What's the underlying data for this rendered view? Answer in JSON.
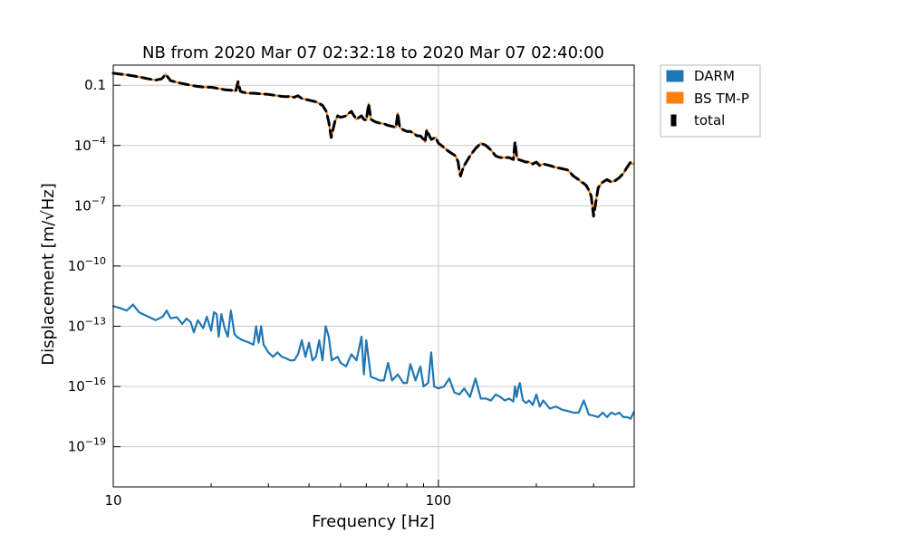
{
  "chart_data": {
    "type": "line",
    "title": "NB from 2020 Mar 07 02:32:18 to 2020 Mar 07 02:40:00",
    "xlabel": "Frequency [Hz]",
    "ylabel": "Displacement [m/√Hz]",
    "xscale": "log",
    "yscale": "log",
    "xlim": [
      10,
      400
    ],
    "ylim": [
      1e-21,
      1
    ],
    "grid": true,
    "legend_position": "outside-top-right",
    "x_ticks": [
      {
        "value": 10,
        "label": "10"
      },
      {
        "value": 100,
        "label": "100"
      }
    ],
    "y_ticks": [
      {
        "value": 0.1,
        "label": "0.1"
      },
      {
        "value": 0.0001,
        "label": "10^-4"
      },
      {
        "value": 1e-07,
        "label": "10^-7"
      },
      {
        "value": 1e-10,
        "label": "10^-10"
      },
      {
        "value": 1e-13,
        "label": "10^-13"
      },
      {
        "value": 1e-16,
        "label": "10^-16"
      },
      {
        "value": 1e-19,
        "label": "10^-19"
      }
    ],
    "series": [
      {
        "name": "DARM",
        "color": "#1f77b4",
        "style": "solid",
        "x": [
          10,
          10.5,
          11,
          11.5,
          12,
          12.8,
          13.5,
          14.2,
          14.6,
          15,
          15.7,
          16.3,
          16.8,
          17.3,
          17.7,
          18.2,
          18.9,
          19.4,
          20,
          20.4,
          20.8,
          21.1,
          21.5,
          22,
          22.5,
          23,
          23.6,
          24,
          24.4,
          25,
          26,
          27,
          27.5,
          28,
          28.5,
          29,
          30,
          31,
          32,
          33,
          34,
          35,
          36,
          37,
          38,
          39,
          40,
          41,
          42,
          43,
          44,
          45,
          46,
          47,
          48,
          49,
          50,
          52,
          54,
          56,
          58,
          59,
          60,
          62,
          64,
          66,
          68,
          70,
          72,
          75,
          78,
          80,
          82,
          85,
          88,
          90,
          93,
          95,
          97,
          100,
          104,
          108,
          112,
          116,
          120,
          125,
          130,
          135,
          140,
          145,
          150,
          155,
          160,
          165,
          170,
          172,
          174,
          176,
          178,
          180,
          182,
          186,
          190,
          195,
          200,
          205,
          210,
          220,
          230,
          240,
          250,
          260,
          270,
          280,
          290,
          300,
          310,
          320,
          330,
          340,
          350,
          360,
          370,
          380,
          390,
          398
        ],
        "y": [
          1e-12,
          8e-13,
          6e-13,
          1.2e-12,
          5e-13,
          3e-13,
          2e-13,
          3e-13,
          6e-13,
          2.5e-13,
          2.8e-13,
          1.3e-13,
          2.4e-13,
          1.6e-13,
          5e-14,
          2e-13,
          8e-14,
          3e-13,
          6e-14,
          5e-13,
          4e-13,
          3e-14,
          4e-13,
          8e-14,
          3e-14,
          6e-13,
          4e-14,
          3e-14,
          2.5e-14,
          2e-14,
          1.6e-14,
          1.2e-14,
          1e-13,
          1.5e-14,
          1e-13,
          1.2e-14,
          5e-15,
          3e-15,
          5e-15,
          3e-15,
          2.5e-15,
          2e-15,
          2e-15,
          4e-15,
          2e-14,
          3e-15,
          1.5e-14,
          2e-15,
          3e-15,
          2e-14,
          2e-15,
          1e-13,
          3e-14,
          2e-15,
          2.5e-15,
          3e-15,
          1.5e-15,
          1e-15,
          4e-15,
          2e-15,
          3e-14,
          4e-16,
          2e-14,
          3e-16,
          2.5e-16,
          2e-16,
          2e-16,
          1.5e-15,
          2e-16,
          4e-16,
          1.5e-16,
          1.5e-16,
          1.3e-15,
          2e-16,
          1e-15,
          1e-16,
          1.5e-16,
          5e-15,
          1e-16,
          8e-17,
          1e-16,
          2.5e-16,
          5e-17,
          4e-17,
          8e-17,
          3e-17,
          2.5e-16,
          2.5e-17,
          2.5e-17,
          2e-17,
          4e-17,
          3e-17,
          2e-17,
          2.5e-17,
          1.8e-17,
          1e-16,
          3e-17,
          8e-17,
          1.5e-16,
          5e-17,
          2e-17,
          1.5e-17,
          2e-17,
          1.2e-17,
          4e-17,
          1e-17,
          2e-17,
          8e-18,
          1e-17,
          7e-18,
          6e-18,
          5e-18,
          5e-18,
          2e-17,
          4e-18,
          3.5e-18,
          3e-18,
          5e-18,
          3e-18,
          5e-18,
          4e-18,
          5e-18,
          3e-18,
          3e-18,
          2.5e-18,
          5e-18
        ]
      },
      {
        "name": "BS TM-P",
        "color": "#ff7f0e",
        "style": "solid",
        "x": [
          10,
          10.5,
          11,
          12,
          12.8,
          13.5,
          14.1,
          14.5,
          15,
          16,
          16.8,
          17.3,
          18,
          19,
          20,
          22,
          23.4,
          23.8,
          24.2,
          24.6,
          25,
          26,
          27,
          28,
          30,
          32,
          33,
          34,
          35,
          36,
          37,
          38,
          40,
          42,
          44,
          45.2,
          46,
          46.8,
          48,
          49,
          50,
          52,
          53,
          54,
          55,
          56,
          57,
          58,
          59,
          60,
          61,
          62,
          64,
          66,
          68,
          70,
          72,
          74,
          75,
          76,
          78,
          80,
          82,
          84,
          86,
          88,
          90,
          91,
          92,
          95,
          98,
          100,
          103,
          106,
          110,
          113,
          115,
          116,
          117,
          118,
          120,
          125,
          130,
          135,
          140,
          145,
          150,
          155,
          160,
          165,
          170,
          172,
          174,
          176,
          180,
          185,
          190,
          195,
          200,
          205,
          210,
          220,
          230,
          240,
          250,
          260,
          270,
          275,
          280,
          285,
          290,
          295,
          300,
          310,
          320,
          330,
          340,
          350,
          360,
          370,
          380,
          390,
          395,
          398
        ],
        "y": [
          0.4,
          0.36,
          0.33,
          0.26,
          0.21,
          0.18,
          0.21,
          0.35,
          0.17,
          0.13,
          0.11,
          0.1,
          0.09,
          0.08,
          0.08,
          0.06,
          0.055,
          0.05,
          0.15,
          0.05,
          0.045,
          0.04,
          0.04,
          0.038,
          0.035,
          0.03,
          0.028,
          0.027,
          0.028,
          0.025,
          0.03,
          0.022,
          0.018,
          0.015,
          0.01,
          0.005,
          0.0015,
          0.00025,
          0.0015,
          0.003,
          0.0025,
          0.003,
          0.004,
          0.005,
          0.003,
          0.002,
          0.0025,
          0.003,
          0.002,
          0.0018,
          0.012,
          0.002,
          0.0015,
          0.0013,
          0.0012,
          0.001,
          0.0009,
          0.0008,
          0.004,
          0.0008,
          0.0006,
          0.0005,
          0.0005,
          0.0004,
          0.0003,
          0.0003,
          0.0002,
          0.00015,
          0.0006,
          0.0002,
          0.00025,
          0.00013,
          9e-05,
          6e-05,
          4e-05,
          3e-05,
          1.5e-05,
          5e-06,
          3e-06,
          5e-06,
          1e-05,
          3e-05,
          7e-05,
          0.00013,
          0.0001,
          6e-05,
          3e-05,
          2.5e-05,
          2.5e-05,
          2.5e-05,
          2e-05,
          0.00015,
          3e-05,
          2e-05,
          1.8e-05,
          1.5e-05,
          1.5e-05,
          1.2e-05,
          1.5e-05,
          1e-05,
          1.2e-05,
          1e-05,
          8e-06,
          7e-06,
          6e-06,
          3e-06,
          2e-06,
          1.5e-06,
          1.3e-06,
          1e-06,
          6e-07,
          3e-07,
          3e-08,
          8e-07,
          1.5e-06,
          2e-06,
          1.5e-06,
          1.8e-06,
          2.5e-06,
          4e-06,
          8e-06,
          1.5e-05,
          1.2e-05,
          1.2e-05
        ]
      },
      {
        "name": "total",
        "color": "#000000",
        "style": "dashed",
        "x": [
          10,
          10.5,
          11,
          12,
          12.8,
          13.5,
          14.1,
          14.5,
          15,
          16,
          16.8,
          17.3,
          18,
          19,
          20,
          22,
          23.4,
          23.8,
          24.2,
          24.6,
          25,
          26,
          27,
          28,
          30,
          32,
          33,
          34,
          35,
          36,
          37,
          38,
          40,
          42,
          44,
          45.2,
          46,
          46.8,
          48,
          49,
          50,
          52,
          53,
          54,
          55,
          56,
          57,
          58,
          59,
          60,
          61,
          62,
          64,
          66,
          68,
          70,
          72,
          74,
          75,
          76,
          78,
          80,
          82,
          84,
          86,
          88,
          90,
          91,
          92,
          95,
          98,
          100,
          103,
          106,
          110,
          113,
          115,
          116,
          117,
          118,
          120,
          125,
          130,
          135,
          140,
          145,
          150,
          155,
          160,
          165,
          170,
          172,
          174,
          176,
          180,
          185,
          190,
          195,
          200,
          205,
          210,
          220,
          230,
          240,
          250,
          260,
          270,
          275,
          280,
          285,
          290,
          295,
          300,
          310,
          320,
          330,
          340,
          350,
          360,
          370,
          380,
          390,
          395,
          398
        ],
        "y": [
          0.4,
          0.36,
          0.33,
          0.26,
          0.21,
          0.18,
          0.21,
          0.35,
          0.17,
          0.13,
          0.11,
          0.1,
          0.09,
          0.08,
          0.08,
          0.06,
          0.055,
          0.05,
          0.15,
          0.05,
          0.045,
          0.04,
          0.04,
          0.038,
          0.035,
          0.03,
          0.028,
          0.027,
          0.028,
          0.025,
          0.03,
          0.022,
          0.018,
          0.015,
          0.01,
          0.005,
          0.0015,
          0.00025,
          0.0015,
          0.003,
          0.0025,
          0.003,
          0.004,
          0.005,
          0.003,
          0.002,
          0.0025,
          0.003,
          0.002,
          0.0018,
          0.012,
          0.002,
          0.0015,
          0.0013,
          0.0012,
          0.001,
          0.0009,
          0.0008,
          0.004,
          0.0008,
          0.0006,
          0.0005,
          0.0005,
          0.0004,
          0.0003,
          0.0003,
          0.0002,
          0.00015,
          0.0006,
          0.0002,
          0.00025,
          0.00013,
          9e-05,
          6e-05,
          4e-05,
          3e-05,
          1.5e-05,
          5e-06,
          3e-06,
          5e-06,
          1e-05,
          3e-05,
          7e-05,
          0.00013,
          0.0001,
          6e-05,
          3e-05,
          2.5e-05,
          2.5e-05,
          2.5e-05,
          2e-05,
          0.00015,
          3e-05,
          2e-05,
          1.8e-05,
          1.5e-05,
          1.5e-05,
          1.2e-05,
          1.5e-05,
          1e-05,
          1.2e-05,
          1e-05,
          8e-06,
          7e-06,
          6e-06,
          3e-06,
          2e-06,
          1.5e-06,
          1.3e-06,
          1e-06,
          6e-07,
          3e-07,
          3e-08,
          8e-07,
          1.5e-06,
          2e-06,
          1.5e-06,
          1.8e-06,
          2.5e-06,
          4e-06,
          8e-06,
          1.5e-05,
          1.2e-05,
          1.2e-05
        ]
      }
    ]
  }
}
